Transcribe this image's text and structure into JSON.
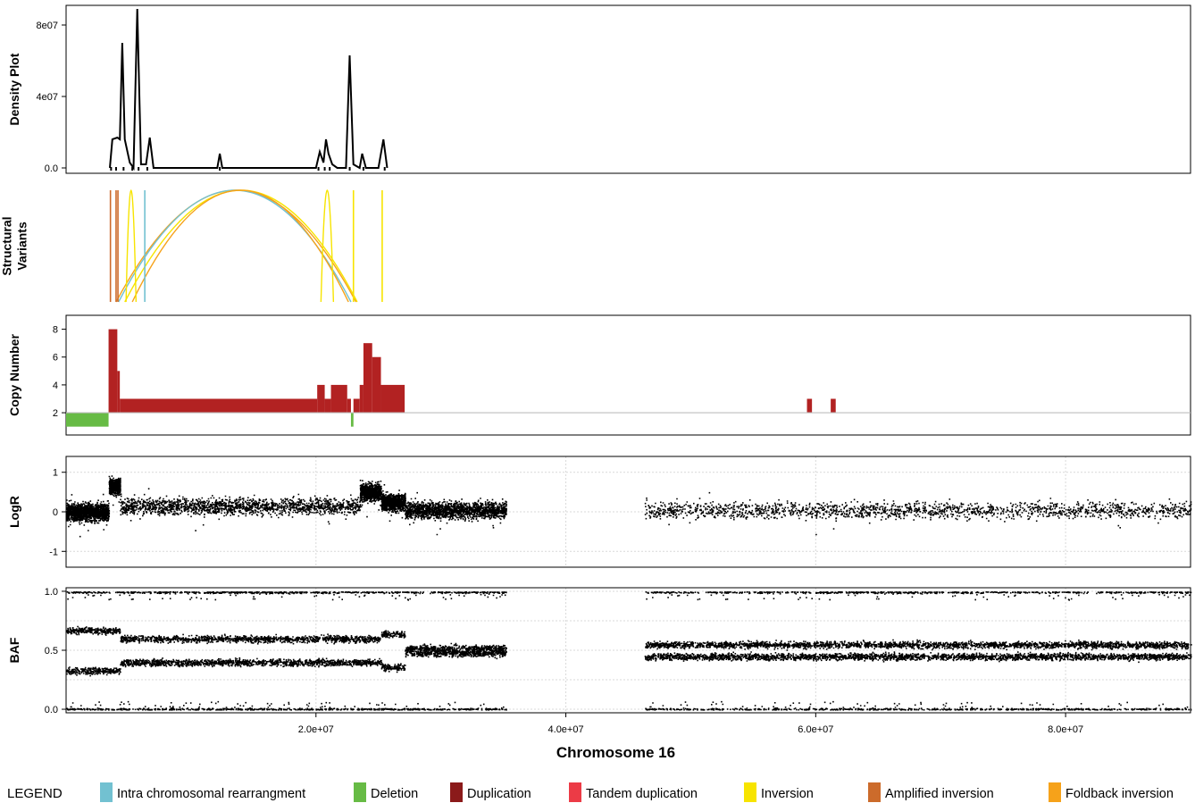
{
  "chart_data": {
    "type": "multi-panel genomic plot",
    "xlabel": "Chromosome 16",
    "xlim": [
      0,
      90000000
    ],
    "x_ticks": [
      {
        "value": 20000000,
        "label": "2.0e+07"
      },
      {
        "value": 40000000,
        "label": "4.0e+07"
      },
      {
        "value": 60000000,
        "label": "6.0e+07"
      },
      {
        "value": 80000000,
        "label": "8.0e+07"
      }
    ],
    "panels": {
      "density": {
        "ylabel": "Density Plot",
        "ylim": [
          0,
          90000000
        ],
        "y_ticks": [
          {
            "value": 0,
            "label": "0.0"
          },
          {
            "value": 40000000,
            "label": "4e07"
          },
          {
            "value": 80000000,
            "label": "8e07"
          }
        ],
        "curve": [
          [
            3500000,
            0
          ],
          [
            3700000,
            16000000
          ],
          [
            4100000,
            17000000
          ],
          [
            4300000,
            16000000
          ],
          [
            4500000,
            70000000
          ],
          [
            4700000,
            16000000
          ],
          [
            5100000,
            3000000
          ],
          [
            5400000,
            0
          ],
          [
            5700000,
            89000000
          ],
          [
            6000000,
            2000000
          ],
          [
            6400000,
            2000000
          ],
          [
            6700000,
            17000000
          ],
          [
            7000000,
            0
          ],
          [
            12100000,
            0
          ],
          [
            12300000,
            8000000
          ],
          [
            12500000,
            0
          ],
          [
            20000000,
            0
          ],
          [
            20300000,
            9000000
          ],
          [
            20600000,
            3000000
          ],
          [
            20800000,
            16000000
          ],
          [
            21000000,
            8000000
          ],
          [
            21300000,
            2000000
          ],
          [
            21700000,
            0
          ],
          [
            22400000,
            0
          ],
          [
            22700000,
            63000000
          ],
          [
            23000000,
            2000000
          ],
          [
            23500000,
            0
          ],
          [
            23700000,
            8000000
          ],
          [
            24000000,
            0
          ],
          [
            25000000,
            0
          ],
          [
            25400000,
            16000000
          ],
          [
            25700000,
            0
          ]
        ],
        "rug_x": [
          3600000,
          4000000,
          4600000,
          5300000,
          5800000,
          6500000,
          12300000,
          20200000,
          20700000,
          21100000,
          22700000,
          23800000,
          25500000
        ]
      },
      "structural_variants": {
        "ylabel_lines": [
          "Structural",
          "Variants"
        ],
        "vertical_lines": [
          {
            "x": 3550000,
            "type": "Amplified inversion"
          },
          {
            "x": 4000000,
            "type": "Amplified inversion"
          },
          {
            "x": 4150000,
            "type": "Amplified inversion"
          },
          {
            "x": 6300000,
            "type": "Intra chromosomal rearrangment"
          },
          {
            "x": 23000000,
            "type": "Inversion"
          },
          {
            "x": 25300000,
            "type": "Inversion"
          }
        ],
        "arcs": [
          {
            "x1": 4000000,
            "x2": 23200000,
            "type": "Foldback inversion"
          },
          {
            "x1": 4200000,
            "x2": 22800000,
            "type": "Intra chromosomal rearrangment"
          },
          {
            "x1": 4700000,
            "x2": 23300000,
            "type": "Inversion"
          },
          {
            "x1": 5300000,
            "x2": 22600000,
            "type": "Foldback inversion"
          },
          {
            "x1": 4800000,
            "x2": 5600000,
            "type": "Inversion"
          },
          {
            "x1": 20400000,
            "x2": 21400000,
            "type": "Inversion"
          }
        ]
      },
      "copy_number": {
        "ylabel": "Copy Number",
        "ylim": [
          0.4,
          9
        ],
        "baseline": 2,
        "y_ticks": [
          {
            "value": 2,
            "label": "2"
          },
          {
            "value": 4,
            "label": "4"
          },
          {
            "value": 6,
            "label": "6"
          },
          {
            "value": 8,
            "label": "8"
          }
        ],
        "segments": [
          {
            "start": 0,
            "end": 3400000,
            "cn": 1,
            "type": "Deletion"
          },
          {
            "start": 3400000,
            "end": 4100000,
            "cn": 8,
            "type": "Duplication"
          },
          {
            "start": 4100000,
            "end": 4300000,
            "cn": 5,
            "type": "Duplication"
          },
          {
            "start": 4300000,
            "end": 20100000,
            "cn": 3,
            "type": "Duplication"
          },
          {
            "start": 20100000,
            "end": 20700000,
            "cn": 4,
            "type": "Duplication"
          },
          {
            "start": 20700000,
            "end": 21200000,
            "cn": 3,
            "type": "Duplication"
          },
          {
            "start": 21200000,
            "end": 22500000,
            "cn": 4,
            "type": "Duplication"
          },
          {
            "start": 22500000,
            "end": 22800000,
            "cn": 3,
            "type": "Duplication"
          },
          {
            "start": 22800000,
            "end": 23000000,
            "cn": 1,
            "type": "Deletion"
          },
          {
            "start": 23000000,
            "end": 23500000,
            "cn": 3,
            "type": "Duplication"
          },
          {
            "start": 23500000,
            "end": 23800000,
            "cn": 4,
            "type": "Duplication"
          },
          {
            "start": 23800000,
            "end": 24500000,
            "cn": 7,
            "type": "Duplication"
          },
          {
            "start": 24500000,
            "end": 25200000,
            "cn": 6,
            "type": "Duplication"
          },
          {
            "start": 25200000,
            "end": 27100000,
            "cn": 4,
            "type": "Duplication"
          },
          {
            "start": 59300000,
            "end": 59700000,
            "cn": 3,
            "type": "Duplication"
          },
          {
            "start": 61200000,
            "end": 61600000,
            "cn": 3,
            "type": "Duplication"
          }
        ]
      },
      "logr": {
        "ylabel": "LogR",
        "ylim": [
          -1.4,
          1.4
        ],
        "y_ticks": [
          {
            "value": -1,
            "label": "-1"
          },
          {
            "value": 0,
            "label": "0"
          },
          {
            "value": 1,
            "label": "1"
          }
        ],
        "data_regions": [
          {
            "start": 0,
            "end": 3400000,
            "mean": 0
          },
          {
            "start": 3400000,
            "end": 4300000,
            "mean": 0.65
          },
          {
            "start": 4300000,
            "end": 23500000,
            "mean": 0.15
          },
          {
            "start": 23500000,
            "end": 25200000,
            "mean": 0.5
          },
          {
            "start": 25200000,
            "end": 27100000,
            "mean": 0.25
          },
          {
            "start": 27100000,
            "end": 35200000,
            "mean": 0.05
          },
          {
            "start": 46300000,
            "end": 90000000,
            "mean": 0.05
          }
        ]
      },
      "baf": {
        "ylabel": "BAF",
        "ylim": [
          -0.03,
          1.03
        ],
        "y_ticks": [
          {
            "value": 0,
            "label": "0.0"
          },
          {
            "value": 0.5,
            "label": "0.5"
          },
          {
            "value": 1,
            "label": "1.0"
          }
        ],
        "bands": [
          {
            "start": 0,
            "end": 4300000,
            "baf": [
              0.33,
              0.67
            ]
          },
          {
            "start": 4300000,
            "end": 25200000,
            "baf": [
              0.4,
              0.6
            ]
          },
          {
            "start": 25200000,
            "end": 27100000,
            "baf": [
              0.36,
              0.64
            ]
          },
          {
            "start": 27100000,
            "end": 35200000,
            "baf": [
              0.48,
              0.52
            ]
          },
          {
            "start": 46300000,
            "end": 90000000,
            "baf": [
              0.45,
              0.55
            ]
          }
        ],
        "data_regions": [
          {
            "start": 0,
            "end": 35200000
          },
          {
            "start": 46300000,
            "end": 90000000
          }
        ]
      }
    },
    "legend": {
      "title": "LEGEND",
      "items": [
        {
          "label": "Intra chromosomal rearrangment",
          "color": "#72c1d1"
        },
        {
          "label": "Deletion",
          "color": "#67bb45"
        },
        {
          "label": "Duplication",
          "color": "#8b1a1a"
        },
        {
          "label": "Tandem duplication",
          "color": "#ec3b46"
        },
        {
          "label": "Inversion",
          "color": "#f7e400"
        },
        {
          "label": "Amplified inversion",
          "color": "#cc6b2b"
        },
        {
          "label": "Foldback inversion",
          "color": "#f6a21a"
        }
      ]
    },
    "colors": {
      "duplication_cn": "#b22222",
      "deletion_cn": "#67bb45",
      "baseline": "#bdbdbd",
      "grid": "#d9d9d9",
      "points": "#000000"
    }
  }
}
